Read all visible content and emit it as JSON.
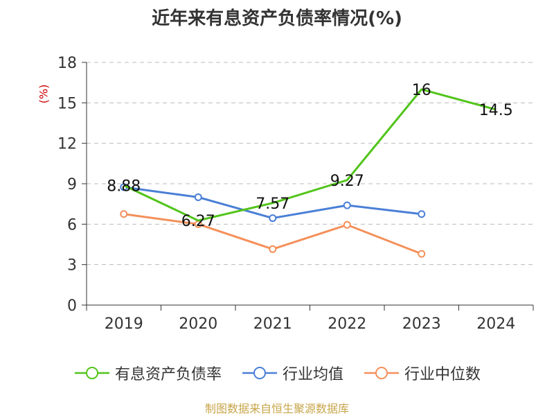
{
  "chart_data": {
    "type": "line",
    "title": "近年来有息资产负债率情况(%)",
    "ylabel": "(%)",
    "categories": [
      "2019",
      "2020",
      "2021",
      "2022",
      "2023",
      "2024"
    ],
    "y_ticks": [
      "0",
      "3",
      "6",
      "9",
      "12",
      "15",
      "18"
    ],
    "ylim": [
      0,
      18
    ],
    "grid": true,
    "legend_position": "bottom",
    "series": [
      {
        "name": "有息资产负债率",
        "color": "#52c41a",
        "values": [
          8.88,
          6.27,
          7.57,
          9.27,
          16,
          14.5
        ],
        "labels": [
          "8.88",
          "6.27",
          "7.57",
          "9.27",
          "16",
          "14.5"
        ]
      },
      {
        "name": "行业均值",
        "color": "#4a7fd6",
        "values": [
          8.75,
          8.0,
          6.45,
          7.4,
          6.75,
          null
        ]
      },
      {
        "name": "行业中位数",
        "color": "#f4905a",
        "values": [
          6.75,
          6.0,
          4.15,
          5.95,
          3.8,
          null
        ]
      }
    ]
  },
  "source": "制图数据来自恒生聚源数据库"
}
